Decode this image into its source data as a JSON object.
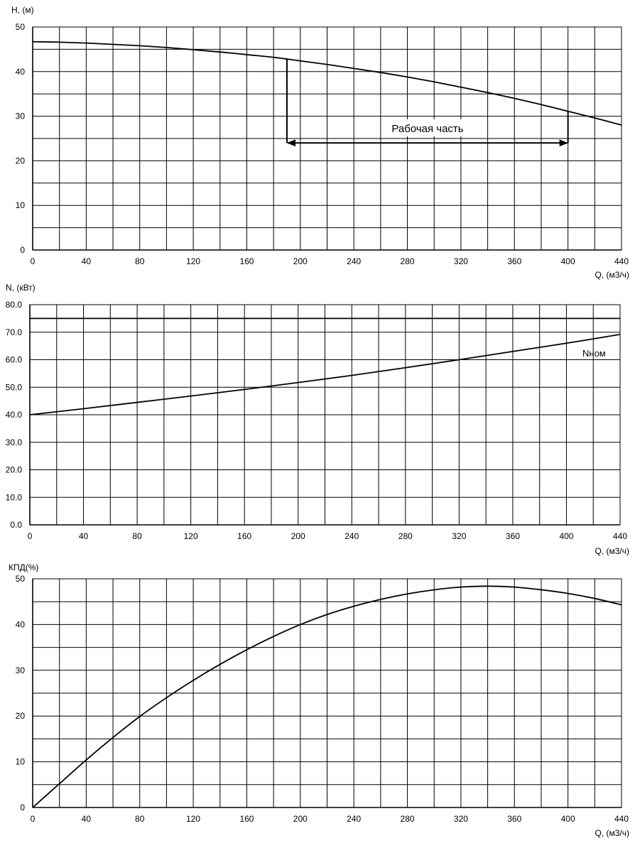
{
  "chart_data": [
    {
      "type": "line",
      "title": "",
      "xlabel": "Q, (м3/ч)",
      "ylabel": "H, (м)",
      "xlim": [
        0,
        440
      ],
      "ylim": [
        0,
        50
      ],
      "x_ticks": [
        "0",
        "40",
        "80",
        "120",
        "160",
        "200",
        "240",
        "280",
        "320",
        "360",
        "400",
        "440"
      ],
      "y_ticks": [
        "0",
        "10",
        "20",
        "30",
        "40",
        "50"
      ],
      "grid": true,
      "series": [
        {
          "name": "",
          "x": [
            0,
            20,
            40,
            60,
            80,
            100,
            120,
            140,
            160,
            180,
            200,
            220,
            240,
            260,
            280,
            300,
            320,
            340,
            360,
            380,
            400,
            420,
            440
          ],
          "y": [
            46.7,
            46.6,
            46.4,
            46.1,
            45.8,
            45.4,
            44.9,
            44.4,
            43.8,
            43.2,
            42.4,
            41.6,
            40.7,
            39.8,
            38.8,
            37.7,
            36.5,
            35.3,
            34.0,
            32.6,
            31.1,
            29.6,
            28.0
          ]
        }
      ],
      "annotation": {
        "label": "Рабочая часть",
        "q_start": 190,
        "q_end": 400,
        "h_level": 24,
        "h_at_start": 42.7,
        "h_at_end": 31.2
      }
    },
    {
      "type": "line",
      "title": "",
      "xlabel": "Q, (м3/ч)",
      "ylabel": "N, (кВт)",
      "xlim": [
        0,
        440
      ],
      "ylim": [
        0,
        80
      ],
      "x_ticks": [
        "0",
        "40",
        "80",
        "120",
        "160",
        "200",
        "240",
        "280",
        "320",
        "360",
        "400",
        "440"
      ],
      "y_ticks": [
        "0.0",
        "10.0",
        "20.0",
        "30.0",
        "40.0",
        "50.0",
        "60.0",
        "70.0",
        "80.0"
      ],
      "grid": true,
      "series": [
        {
          "name": "",
          "x": [
            0,
            40,
            80,
            120,
            160,
            200,
            240,
            280,
            320,
            360,
            400,
            440
          ],
          "y": [
            40.0,
            42.2,
            44.5,
            46.8,
            49.2,
            51.7,
            54.3,
            57.1,
            60.0,
            63.0,
            66.0,
            69.2
          ]
        },
        {
          "name": "",
          "x": [
            0,
            440
          ],
          "y": [
            75.0,
            75.0
          ]
        }
      ],
      "series_label": "Nном"
    },
    {
      "type": "line",
      "title": "",
      "xlabel": "Q, (м3/ч)",
      "ylabel": "КПД(%)",
      "xlim": [
        0,
        440
      ],
      "ylim": [
        0,
        50
      ],
      "x_ticks": [
        "0",
        "40",
        "80",
        "120",
        "160",
        "200",
        "240",
        "280",
        "320",
        "360",
        "400",
        "440"
      ],
      "y_ticks": [
        "0",
        "10",
        "20",
        "30",
        "40",
        "50"
      ],
      "grid": true,
      "series": [
        {
          "name": "",
          "x": [
            0,
            20,
            40,
            60,
            80,
            100,
            120,
            140,
            160,
            180,
            200,
            220,
            240,
            260,
            280,
            300,
            320,
            340,
            360,
            380,
            400,
            420,
            440
          ],
          "y": [
            0,
            5.2,
            10.4,
            15.3,
            19.9,
            24.0,
            27.8,
            31.3,
            34.5,
            37.4,
            40.0,
            42.2,
            44.0,
            45.5,
            46.7,
            47.6,
            48.2,
            48.4,
            48.2,
            47.6,
            46.8,
            45.7,
            44.3
          ]
        }
      ]
    }
  ]
}
